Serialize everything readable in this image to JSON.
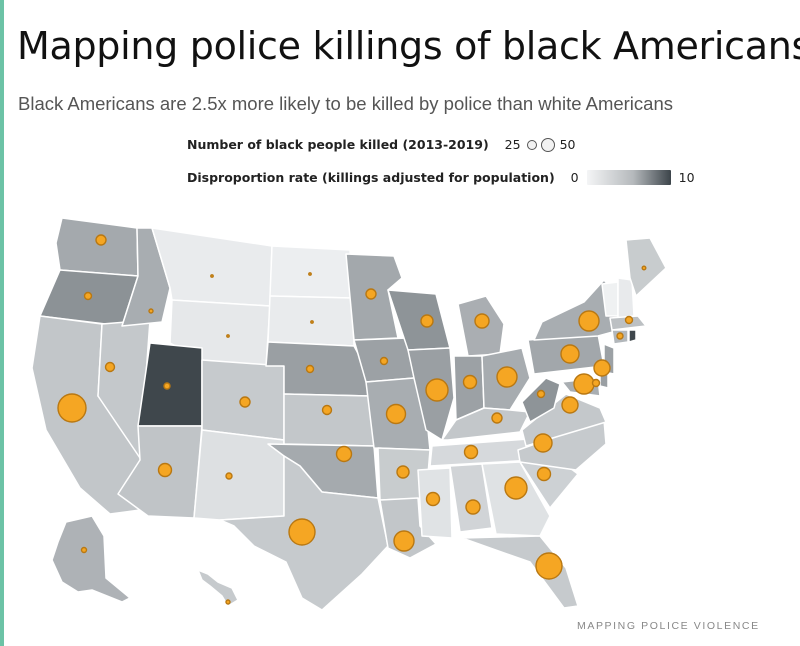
{
  "title": "Mapping police killings of black Americans",
  "subtitle": "Black Americans are 2.5x more likely to be killed by police than white Americans",
  "legend": {
    "size_label": "Number of black people killed (2013-2019)",
    "size_min": "25",
    "size_max": "50",
    "color_label": "Disproportion rate (killings adjusted for population)",
    "color_min": "0",
    "color_max": "10"
  },
  "source": "MAPPING POLICE VIOLENCE",
  "colors": {
    "accent_bar": "#6cc3a6",
    "dot_fill": "#f5a623",
    "dot_stroke": "#b97812",
    "scale_low": "#f4f5f6",
    "scale_high": "#3c444a"
  }
}
